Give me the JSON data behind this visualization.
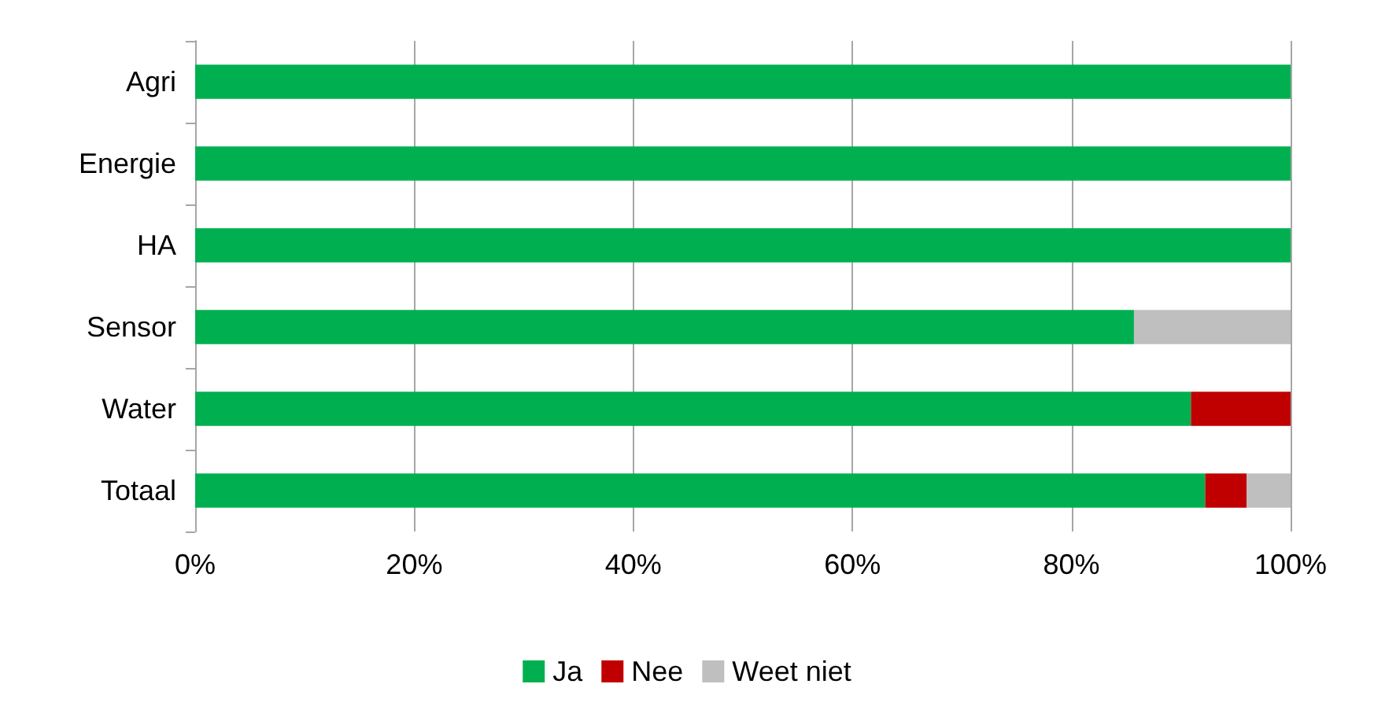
{
  "chart_data": {
    "type": "bar",
    "orientation": "horizontal",
    "stacked": true,
    "categories": [
      "Agri",
      "Energie",
      "HA",
      "Sensor",
      "Water",
      "Totaal"
    ],
    "series": [
      {
        "name": "Ja",
        "color": "#00b050",
        "values": [
          100,
          100,
          100,
          85.7,
          90.9,
          92.2
        ]
      },
      {
        "name": "Nee",
        "color": "#c00000",
        "values": [
          0,
          0,
          0,
          0,
          9.1,
          3.8
        ]
      },
      {
        "name": "Weet niet",
        "color": "#bfbfbf",
        "values": [
          0,
          0,
          0,
          14.3,
          0,
          4.0
        ]
      }
    ],
    "xlim": [
      0,
      100
    ],
    "xticks": [
      {
        "value": 0,
        "label": "0%"
      },
      {
        "value": 20,
        "label": "20%"
      },
      {
        "value": 40,
        "label": "40%"
      },
      {
        "value": 60,
        "label": "60%"
      },
      {
        "value": 80,
        "label": "80%"
      },
      {
        "value": 100,
        "label": "100%"
      }
    ],
    "grid": "x",
    "legend": "bottom"
  }
}
